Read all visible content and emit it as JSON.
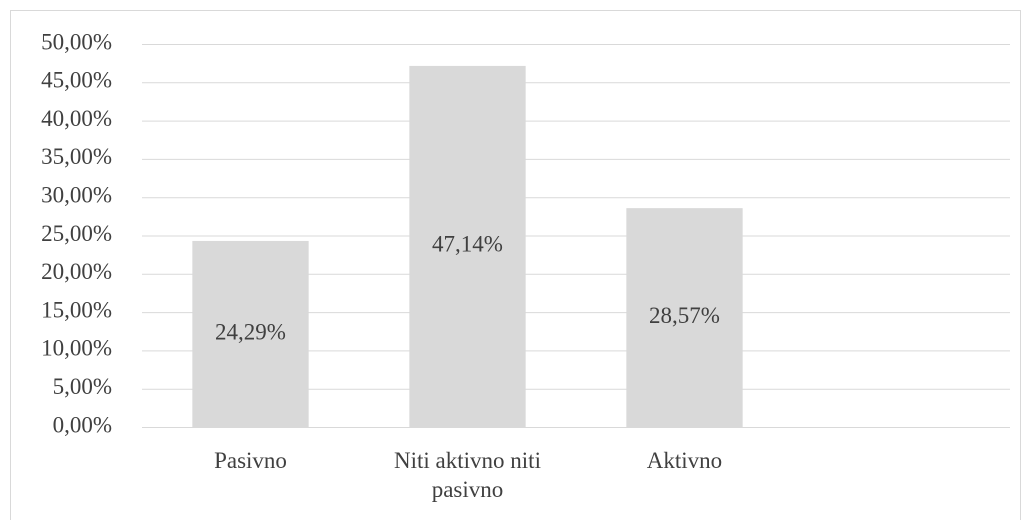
{
  "chart_data": {
    "type": "bar",
    "categories": [
      "Pasivno",
      "Niti aktivno niti pasivno",
      "Aktivno",
      null
    ],
    "values": [
      24.29,
      47.14,
      28.57,
      null
    ],
    "value_labels": [
      "24,29%",
      "47,14%",
      "28,57%",
      null
    ],
    "color": "#d9d9d9",
    "ylim": [
      0,
      50
    ],
    "yticks": [
      {
        "value": 0,
        "label": "0,00%"
      },
      {
        "value": 5,
        "label": "5,00%"
      },
      {
        "value": 10,
        "label": "10,00%"
      },
      {
        "value": 15,
        "label": "15,00%"
      },
      {
        "value": 20,
        "label": "20,00%"
      },
      {
        "value": 25,
        "label": "25,00%"
      },
      {
        "value": 30,
        "label": "30,00%"
      },
      {
        "value": 35,
        "label": "35,00%"
      },
      {
        "value": 40,
        "label": "40,00%"
      },
      {
        "value": 45,
        "label": "45,00%"
      },
      {
        "value": 50,
        "label": "50,00%"
      }
    ],
    "grid": true
  }
}
